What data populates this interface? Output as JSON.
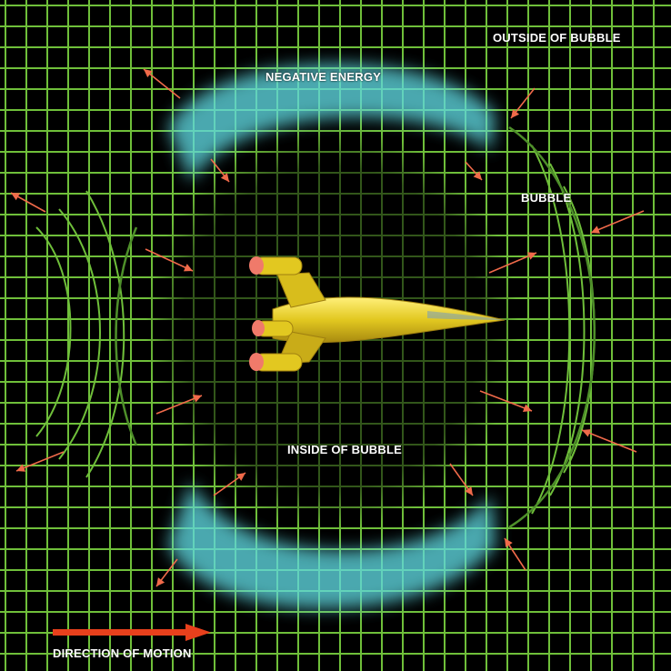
{
  "labels": {
    "outside": "OUTSIDE OF BUBBLE",
    "negative_energy": "NEGATIVE ENERGY",
    "bubble": "BUBBLE",
    "inside": "INSIDE OF BUBBLE",
    "direction": "DIRECTION OF MOTION"
  },
  "colors": {
    "background": "#000000",
    "grid": "#6fbf3a",
    "energy": "#5fd8e0",
    "arrows": "#f06a4a",
    "motion_arrow": "#e8401c",
    "ship_body": "#e2c820",
    "ship_engines": "#f07a6a",
    "text": "#ffffff"
  }
}
